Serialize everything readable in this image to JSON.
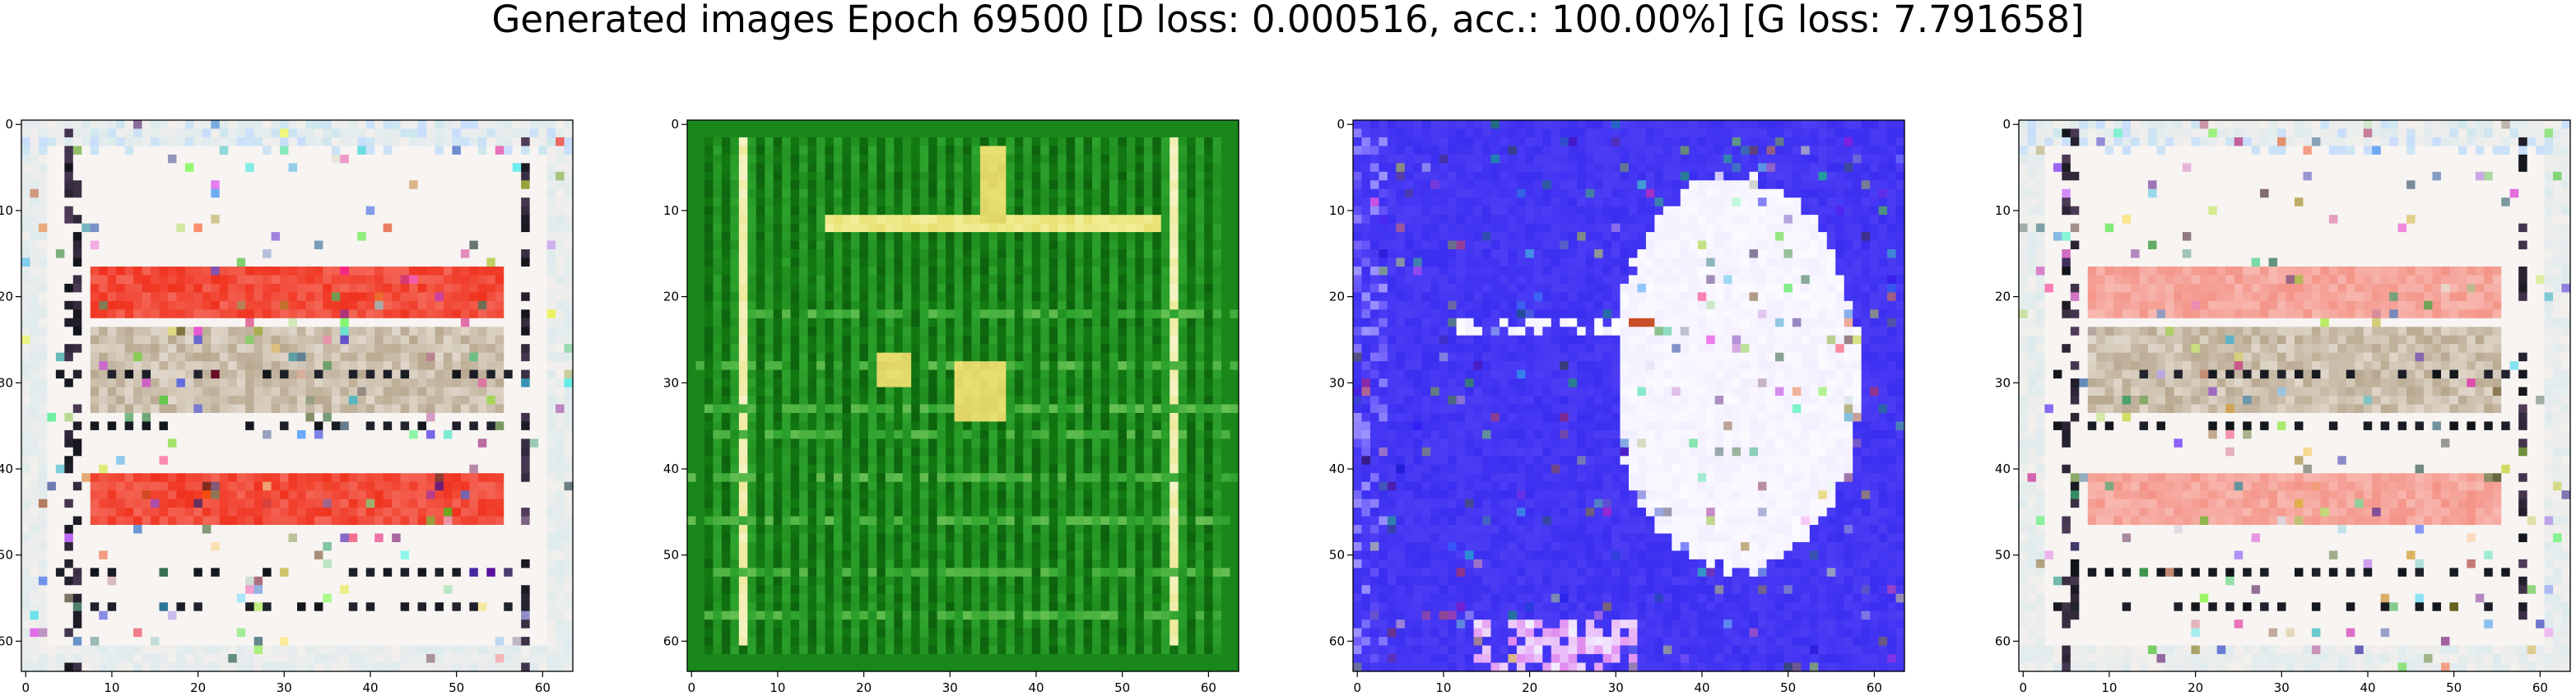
{
  "figure": {
    "title": "Generated images Epoch 69500 [D loss: 0.000516, acc.: 100.00%] [G loss: 7.791658]"
  },
  "axes_ticks": {
    "x": [
      "0",
      "10",
      "20",
      "30",
      "40",
      "50",
      "60"
    ],
    "y": [
      "0",
      "10",
      "20",
      "30",
      "40",
      "50",
      "60"
    ]
  },
  "image_size": 64,
  "panels": [
    {
      "name": "sample-1",
      "dominant_colors": [
        "#f3efec",
        "#f0321e",
        "#101418",
        "#b8a890",
        "#cfe8ee"
      ],
      "description_colors": "white background with two red horizontal bands and dark dotted stripes"
    },
    {
      "name": "sample-2",
      "dominant_colors": [
        "#127a12",
        "#0a4f0a",
        "#2ea42e",
        "#e8e070",
        "#f6f3c8"
      ],
      "description_colors": "green grid with bright yellow vertical and horizontal lines"
    },
    {
      "name": "sample-3",
      "dominant_colors": [
        "#3a2ef0",
        "#5a48f8",
        "#f3efff",
        "#ffffff",
        "#e08af0"
      ],
      "description_colors": "blue background with large white region on right"
    },
    {
      "name": "sample-4",
      "dominant_colors": [
        "#f3efec",
        "#f07060",
        "#101418",
        "#b8a890",
        "#cfe8ee"
      ],
      "description_colors": "white background with pale red bands and dark dotted stripes"
    }
  ]
}
